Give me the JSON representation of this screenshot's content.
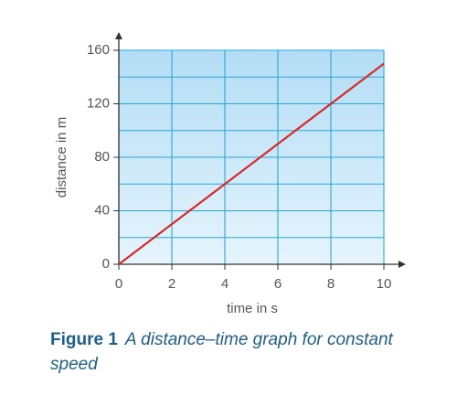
{
  "chart_data": {
    "type": "line",
    "x_label": "time in s",
    "y_label": "distance in m",
    "x": [
      0,
      10
    ],
    "values": [
      0,
      150
    ],
    "color": "#d42a2a",
    "xlim": [
      0,
      10
    ],
    "xticks": [
      0,
      2,
      4,
      6,
      8,
      10
    ],
    "ylim": [
      0,
      160
    ],
    "yticks": [
      0,
      40,
      80,
      120,
      160
    ],
    "y_minor_grid": [
      20,
      60,
      100,
      140
    ],
    "grid": true
  },
  "caption": {
    "label": "Figure 1",
    "text": "A distance–time graph for constant speed"
  }
}
